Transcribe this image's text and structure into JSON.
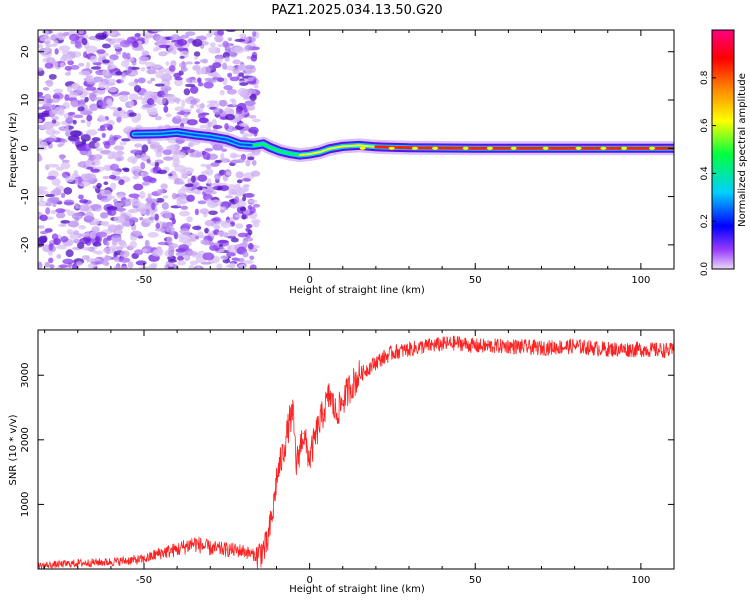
{
  "title": "PAZ1.2025.034.13.50.G20",
  "chart_data": [
    {
      "type": "heatmap",
      "title": "PAZ1.2025.034.13.50.G20",
      "xlabel": "Height of straight line (km)",
      "ylabel": "Frequency (Hz)",
      "xlim": [
        -82,
        110
      ],
      "ylim": [
        -25,
        24.5
      ],
      "xticks": [
        -50,
        0,
        50,
        100
      ],
      "yticks": [
        -20,
        -10,
        0,
        10,
        20
      ],
      "colorbar": {
        "label": "Normalized spectral amplitude",
        "range": [
          0,
          1
        ],
        "ticks": [
          "0.0",
          "0.2",
          "0.4",
          "0.6",
          "0.8"
        ],
        "colormap": [
          "#e8d8f8",
          "#9a3cff",
          "#0000ff",
          "#00d0ff",
          "#00ff40",
          "#ffff00",
          "#ff8000",
          "#ff0000",
          "#ff0080"
        ]
      },
      "signal_track": {
        "description": "",
        "points": [
          [
            -53,
            2.9
          ],
          [
            -45,
            3.0
          ],
          [
            -40,
            3.3
          ],
          [
            -35,
            2.8
          ],
          [
            -30,
            2.4
          ],
          [
            -25,
            1.8
          ],
          [
            -21,
            0.8
          ],
          [
            -17,
            0.6
          ],
          [
            -14,
            0.9
          ],
          [
            -12,
            0.2
          ],
          [
            -9,
            -0.6
          ],
          [
            -6,
            -1.1
          ],
          [
            -3,
            -1.4
          ],
          [
            0,
            -1.2
          ],
          [
            3,
            -0.8
          ],
          [
            6,
            -0.1
          ],
          [
            10,
            0.4
          ],
          [
            15,
            0.6
          ],
          [
            20,
            0.3
          ],
          [
            30,
            0.1
          ],
          [
            50,
            0.0
          ],
          [
            80,
            0.0
          ],
          [
            110,
            0.0
          ]
        ]
      },
      "noise_region_x": [
        -82,
        -16
      ]
    },
    {
      "type": "line",
      "xlabel": "Height of straight line (km)",
      "ylabel": "SNR (10 * v/v)",
      "xlim": [
        -82,
        110
      ],
      "ylim": [
        0,
        3700
      ],
      "xticks": [
        -50,
        0,
        50,
        100
      ],
      "yticks": [
        1000,
        2000,
        3000
      ],
      "color": "#ff2020",
      "series": [
        {
          "name": "",
          "x": [
            -82,
            -70,
            -60,
            -50,
            -45,
            -40,
            -35,
            -30,
            -25,
            -20,
            -16,
            -13,
            -11,
            -10,
            -8,
            -6,
            -5,
            -4,
            -2,
            0,
            2,
            4,
            6,
            8,
            10,
            12,
            15,
            20,
            25,
            30,
            35,
            40,
            45,
            50,
            60,
            70,
            80,
            90,
            100,
            110
          ],
          "y": [
            50,
            90,
            110,
            150,
            250,
            300,
            400,
            320,
            300,
            280,
            200,
            350,
            900,
            1400,
            1800,
            2300,
            2400,
            1600,
            2100,
            1700,
            2100,
            2400,
            2700,
            2400,
            2600,
            2800,
            3000,
            3200,
            3350,
            3400,
            3450,
            3480,
            3500,
            3450,
            3450,
            3420,
            3450,
            3400,
            3400,
            3380
          ]
        }
      ]
    }
  ]
}
